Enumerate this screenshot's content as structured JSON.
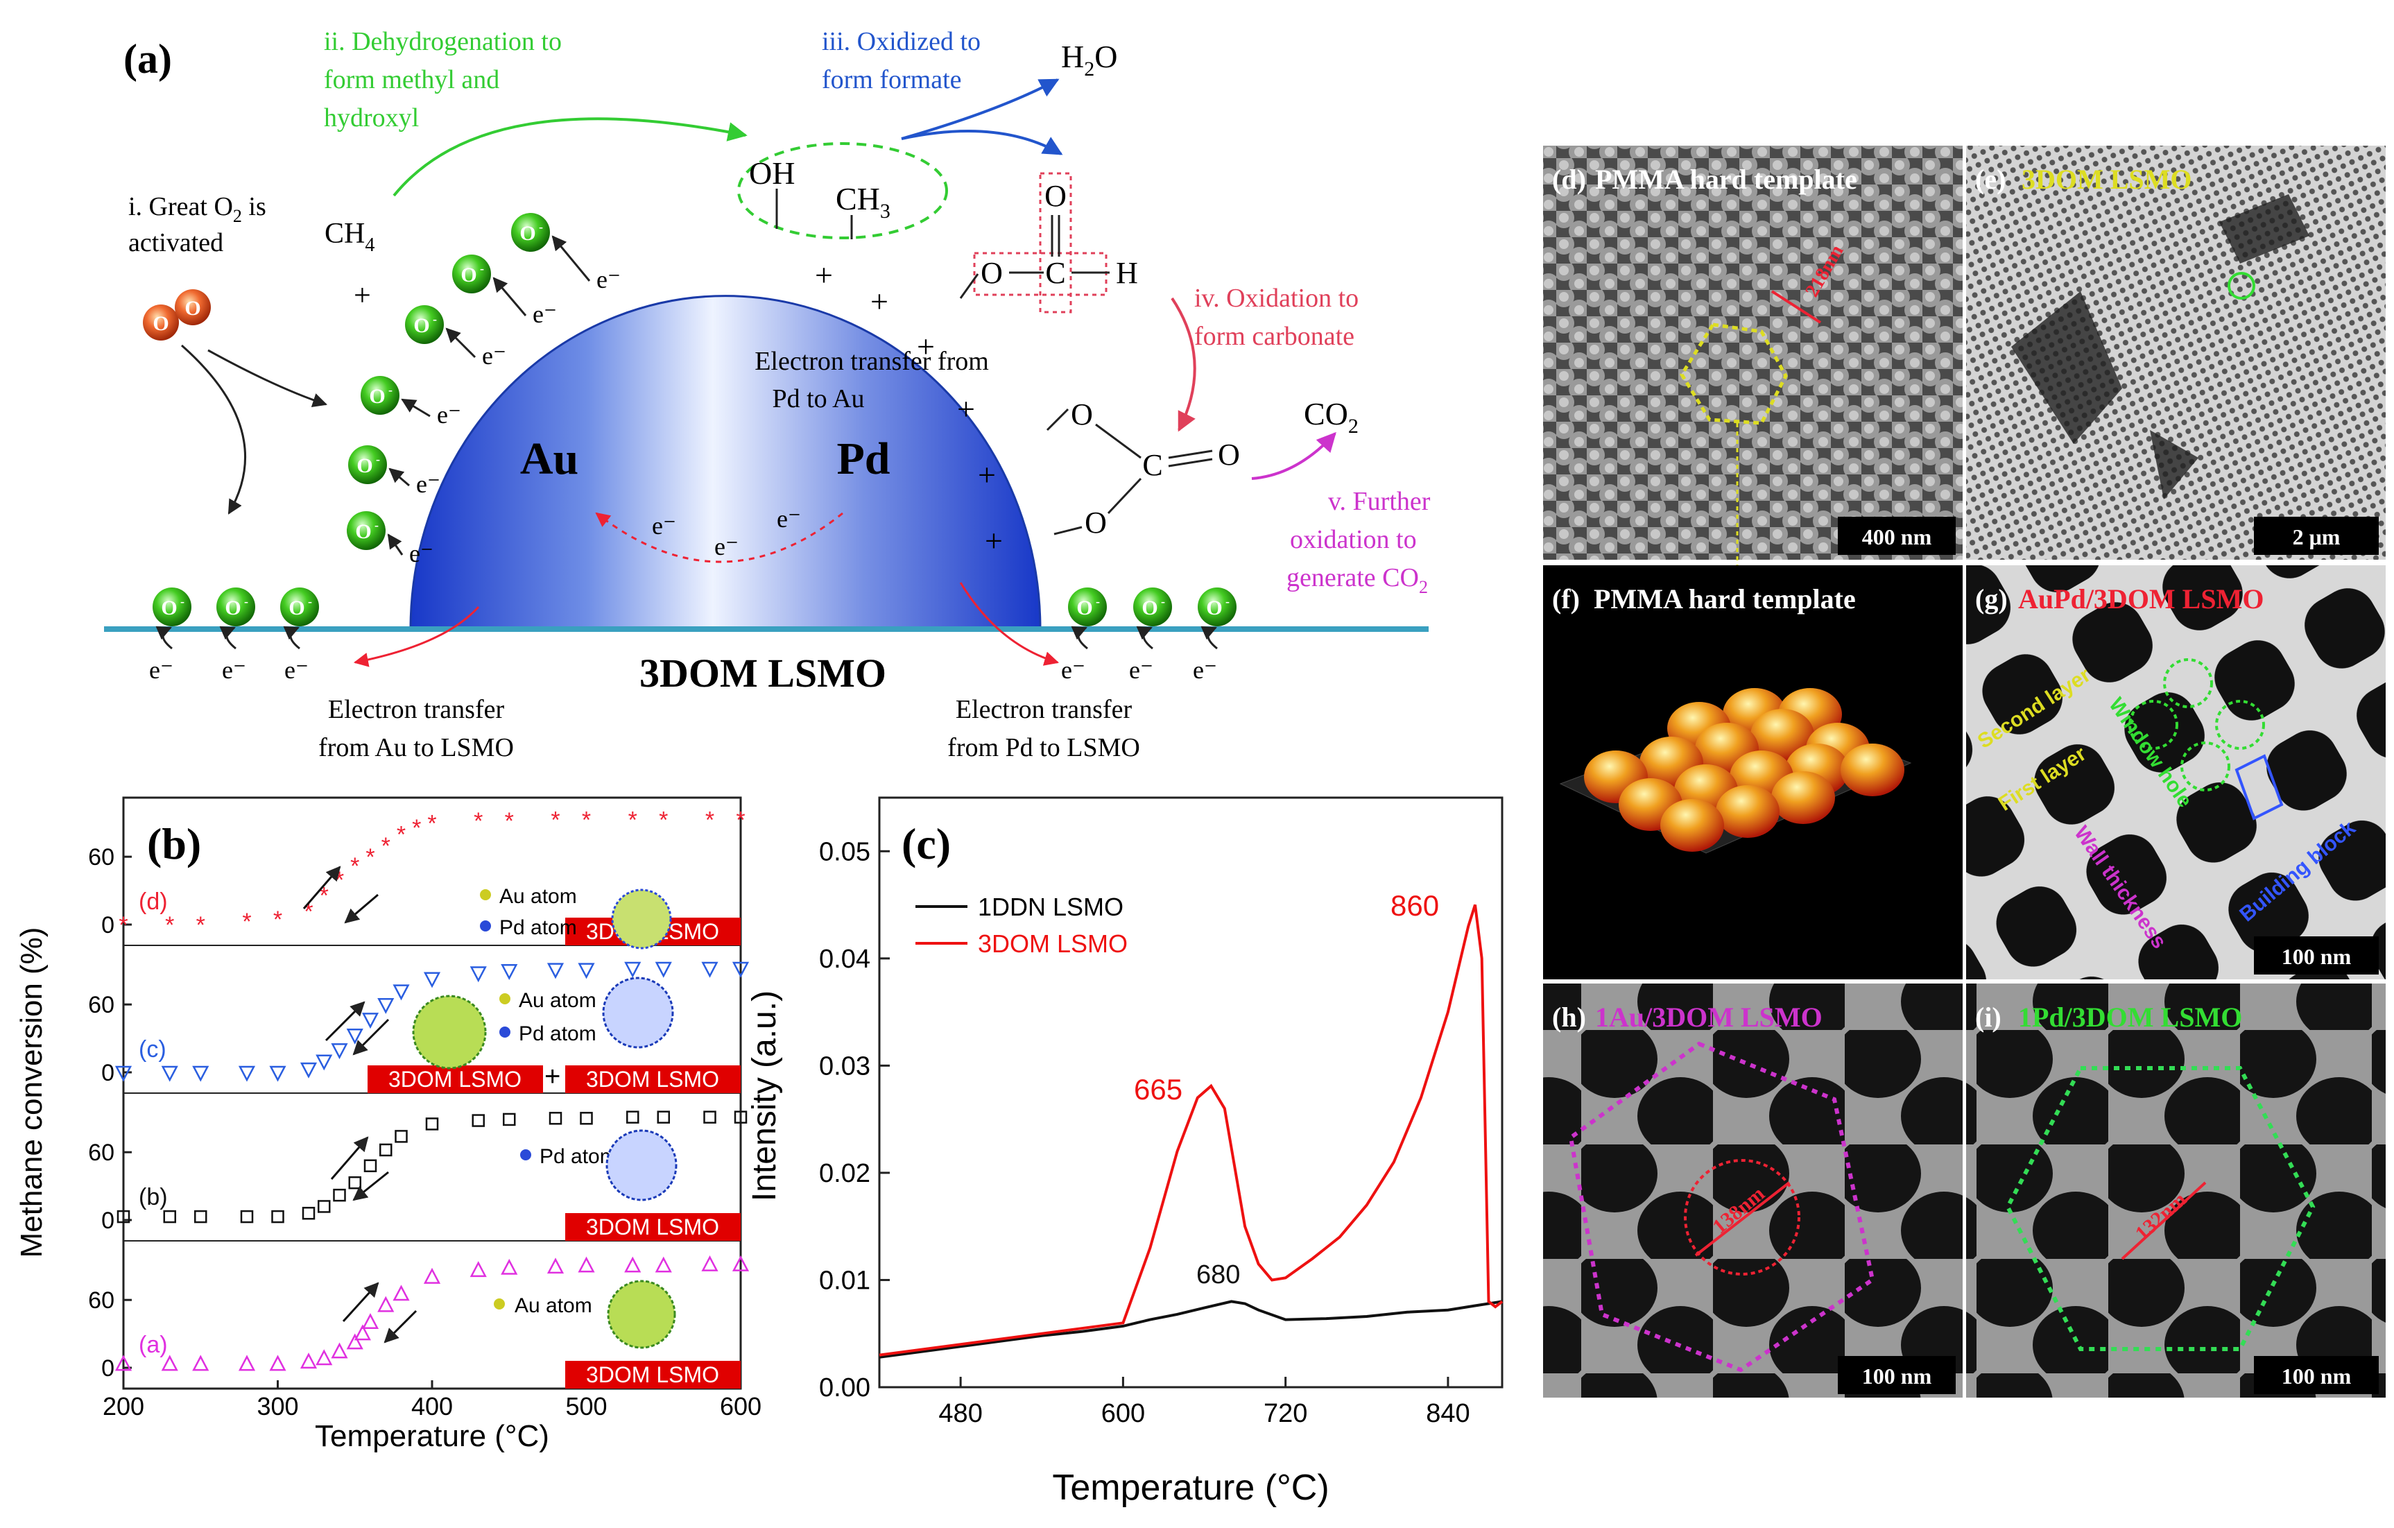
{
  "panel_a": {
    "label": "(a)",
    "steps": {
      "s1_line1": "i. Great O",
      "s1_sub": "2",
      "s1_tail": " is",
      "s1_line2": "activated",
      "s2_line1": "ii. Dehydrogenation to",
      "s2_line2": "form methyl and",
      "s2_line3": "hydroxyl",
      "s3_line1": "iii. Oxidized to",
      "s3_line2": "form formate",
      "s4_line1": "iv. Oxidation to",
      "s4_line2": "form carbonate",
      "s5_line1": "v. Further",
      "s5_line2": "oxidation to",
      "s5_line3": "generate CO",
      "s5_sub": "2"
    },
    "molecules": {
      "ch4": "CH",
      "ch4_sub": "4",
      "h2o_h": "H",
      "h2o_sub": "2",
      "h2o_o": "O",
      "co2": "CO",
      "co2_sub": "2",
      "oh": "OH",
      "ch3": "CH",
      "ch3_sub": "3"
    },
    "particle": {
      "au": "Au",
      "pd": "Pd",
      "transfer_line1": "Electron transfer from",
      "transfer_line2": "Pd to Au"
    },
    "support": "3DOM LSMO",
    "left_transfer_line1": "Electron transfer",
    "left_transfer_line2": "from Au to LSMO",
    "right_transfer_line1": "Electron transfer",
    "right_transfer_line2": "from Pd to LSMO",
    "electron": "e",
    "ion": "O",
    "colors": {
      "green_text": "#33cc33",
      "blue_text": "#2255cc",
      "red_text": "#e0405a",
      "magenta_text": "#cc33cc",
      "support_line": "#3aa0c0"
    }
  },
  "panel_b": {
    "label": "(b)",
    "ylabel": "Methane conversion (%)",
    "xlabel": "Temperature (°C)",
    "x_ticks": [
      "200",
      "300",
      "400",
      "500",
      "600"
    ],
    "y_ticks": [
      "0",
      "60"
    ],
    "badge": "3DOM LSMO",
    "plus": "+",
    "legend_au": "Au atom",
    "legend_pd": "Pd atom"
  },
  "panel_c": {
    "label": "(c)",
    "ylabel": "Intensity (a.u.)",
    "xlabel": "Temperature (°C)",
    "x_ticks": [
      "480",
      "600",
      "720",
      "840"
    ],
    "y_ticks": [
      "0.00",
      "0.01",
      "0.02",
      "0.03",
      "0.04",
      "0.05"
    ],
    "legend": [
      "1DDN LSMO",
      "3DOM LSMO"
    ],
    "peaks": [
      "665",
      "860",
      "680"
    ]
  },
  "micrographs": {
    "d": {
      "label": "(d)",
      "title": "PMMA hard template",
      "scale": "400 nm",
      "dim": "218nm"
    },
    "e": {
      "label": "(e)",
      "title": "3DOM LSMO",
      "scale": "2 μm"
    },
    "f": {
      "label": "(f)",
      "title": "PMMA hard template"
    },
    "g": {
      "label": "(g)",
      "title": "AuPd/3DOM LSMO",
      "scale": "100 nm",
      "ann_second": "Second layer",
      "ann_first": "First layer",
      "ann_window": "Window hole",
      "ann_wall": "Wall thickness",
      "ann_block": "Building block"
    },
    "h": {
      "label": "(h)",
      "title": "1Au/3DOM LSMO",
      "scale": "100 nm",
      "dim": "138nm"
    },
    "i": {
      "label": "(i)",
      "title": "1Pd/3DOM LSMO",
      "scale": "100 nm",
      "dim": "132nm"
    }
  },
  "chart_data": [
    {
      "type": "scatter",
      "title": "(b)",
      "xlabel": "Temperature (°C)",
      "ylabel": "Methane conversion (%)",
      "xlim": [
        200,
        600
      ],
      "series": [
        {
          "name": "(a)",
          "color": "#e030e0",
          "marker": "triangle",
          "x": [
            200,
            230,
            250,
            280,
            300,
            320,
            330,
            340,
            350,
            355,
            360,
            370,
            380,
            400,
            430,
            450,
            480,
            500,
            530,
            550,
            580,
            600
          ],
          "y": [
            3,
            3,
            3,
            3,
            3,
            5,
            8,
            14,
            22,
            30,
            40,
            55,
            65,
            80,
            86,
            88,
            89,
            90,
            90,
            90,
            91,
            91
          ]
        },
        {
          "name": "(b)",
          "color": "#111111",
          "marker": "square",
          "x": [
            200,
            230,
            250,
            280,
            300,
            320,
            330,
            340,
            350,
            360,
            370,
            380,
            400,
            430,
            450,
            480,
            500,
            530,
            550,
            580,
            600
          ],
          "y": [
            3,
            3,
            3,
            3,
            3,
            6,
            12,
            22,
            33,
            48,
            62,
            74,
            85,
            88,
            89,
            90,
            90,
            91,
            91,
            91,
            91
          ]
        },
        {
          "name": "(c)",
          "color": "#2a5ee0",
          "marker": "triangle-down",
          "x": [
            200,
            230,
            250,
            280,
            300,
            320,
            330,
            340,
            350,
            360,
            370,
            380,
            400,
            430,
            450,
            480,
            500,
            530,
            550,
            580,
            600
          ],
          "y": [
            0,
            0,
            0,
            0,
            0,
            3,
            10,
            20,
            33,
            47,
            60,
            72,
            83,
            88,
            90,
            91,
            91,
            92,
            92,
            92,
            92
          ]
        },
        {
          "name": "(d)",
          "color": "#ee2233",
          "marker": "star",
          "x": [
            200,
            230,
            250,
            280,
            300,
            320,
            330,
            340,
            350,
            360,
            370,
            380,
            390,
            400,
            430,
            450,
            480,
            500,
            530,
            550,
            580,
            600
          ],
          "y": [
            0,
            0,
            0,
            3,
            5,
            12,
            26,
            40,
            52,
            60,
            70,
            80,
            86,
            90,
            92,
            92,
            93,
            93,
            93,
            93,
            93,
            93
          ]
        }
      ]
    },
    {
      "type": "line",
      "title": "(c)",
      "xlabel": "Temperature (°C)",
      "ylabel": "Intensity (a.u.)",
      "xlim": [
        420,
        880
      ],
      "ylim": [
        0,
        0.055
      ],
      "series": [
        {
          "name": "1DDN LSMO",
          "color": "#111111",
          "x": [
            420,
            450,
            480,
            510,
            540,
            570,
            600,
            620,
            640,
            660,
            680,
            690,
            700,
            720,
            750,
            780,
            810,
            840,
            860,
            880
          ],
          "y": [
            0.0028,
            0.0033,
            0.0038,
            0.0043,
            0.0048,
            0.0052,
            0.0057,
            0.0063,
            0.0068,
            0.0074,
            0.008,
            0.0078,
            0.0072,
            0.0063,
            0.0064,
            0.0066,
            0.007,
            0.0072,
            0.0076,
            0.008
          ]
        },
        {
          "name": "3DOM LSMO",
          "color": "#ee1111",
          "x": [
            420,
            480,
            540,
            600,
            620,
            640,
            655,
            665,
            675,
            690,
            700,
            710,
            720,
            740,
            760,
            780,
            800,
            820,
            840,
            855,
            860,
            865,
            870,
            875,
            880
          ],
          "y": [
            0.003,
            0.004,
            0.005,
            0.006,
            0.013,
            0.022,
            0.027,
            0.0281,
            0.026,
            0.015,
            0.0115,
            0.01,
            0.0102,
            0.012,
            0.014,
            0.017,
            0.021,
            0.027,
            0.035,
            0.043,
            0.045,
            0.04,
            0.008,
            0.0075,
            0.008
          ]
        }
      ]
    }
  ]
}
